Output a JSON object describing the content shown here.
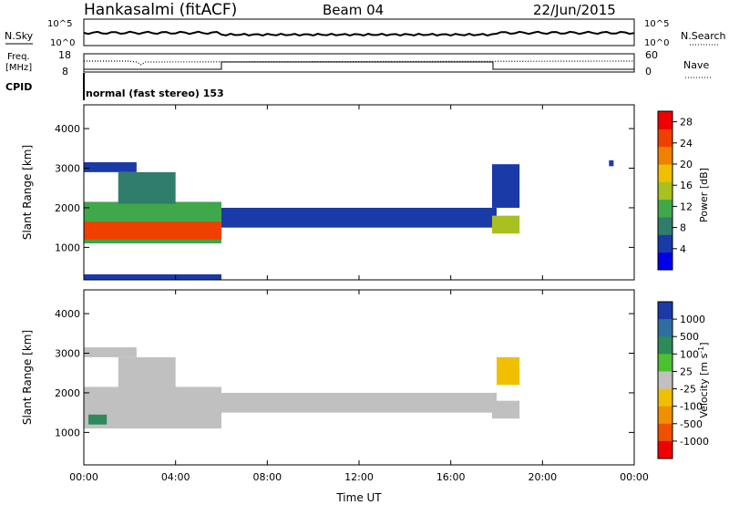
{
  "header": {
    "station": "Hankasalmi (fitACF)",
    "beam": "Beam 04",
    "date": "22/Jun/2015"
  },
  "top_panels": {
    "nsky_label": "N.Sky",
    "nsky_ticks": [
      "10^5",
      "10^0"
    ],
    "nsearch_label": "N.Search",
    "nsearch_ticks": [
      "10^5",
      "10^0"
    ],
    "freq_label_1": "Freq.",
    "freq_label_2": "[MHz]",
    "freq_ticks": [
      "18",
      "8"
    ],
    "nave_label": "Nave",
    "nave_ticks": [
      "60",
      "0"
    ],
    "cpid_label": "CPID",
    "cpid_text": "normal (fast stereo) 153"
  },
  "colors": {
    "power_scale": [
      "#0000ee",
      "#1a3aa8",
      "#2f7d6a",
      "#3fa84a",
      "#a8c020",
      "#f0c000",
      "#f08000",
      "#f04000",
      "#ee0000"
    ],
    "velocity_scale": [
      "#1a3aa8",
      "#2f6fa0",
      "#2f8a5a",
      "#4cc030",
      "#c0c0c0",
      "#f0c000",
      "#f09000",
      "#f05000",
      "#ee0000"
    ]
  },
  "chart_data": [
    {
      "type": "heatmap",
      "title": "Power",
      "xlabel": "Time UT",
      "ylabel": "Slant Range [km]",
      "xlim": [
        "00:00",
        "24:00"
      ],
      "ylim": [
        180,
        4600
      ],
      "x_ticks": [
        "00:00",
        "04:00",
        "08:00",
        "12:00",
        "16:00",
        "20:00",
        "00:00"
      ],
      "y_ticks": [
        "1000",
        "2000",
        "3000",
        "4000"
      ],
      "colorbar": {
        "label": "Power [dB]",
        "ticks": [
          "4",
          "8",
          "12",
          "16",
          "20",
          "24",
          "28"
        ],
        "range": [
          0,
          30
        ]
      },
      "regions": [
        {
          "t0": 0.0,
          "t1": 2.3,
          "r0": 2900,
          "r1": 3150,
          "value": 6
        },
        {
          "t0": 0.0,
          "t1": 6.0,
          "r0": 180,
          "r1": 320,
          "value": 6
        },
        {
          "t0": 0.0,
          "t1": 6.0,
          "r0": 1100,
          "r1": 2150,
          "value": 12
        },
        {
          "t0": 0.0,
          "t1": 6.0,
          "r0": 1200,
          "r1": 1650,
          "value": 24
        },
        {
          "t0": 1.5,
          "t1": 4.0,
          "r0": 2100,
          "r1": 2900,
          "value": 8
        },
        {
          "t0": 6.0,
          "t1": 18.0,
          "r0": 1500,
          "r1": 2000,
          "value": 6
        },
        {
          "t0": 17.8,
          "t1": 19.0,
          "r0": 1350,
          "r1": 1800,
          "value": 16
        },
        {
          "t0": 17.8,
          "t1": 19.0,
          "r0": 2000,
          "r1": 3100,
          "value": 6
        },
        {
          "t0": 22.9,
          "t1": 23.1,
          "r0": 3050,
          "r1": 3200,
          "value": 4
        }
      ]
    },
    {
      "type": "heatmap",
      "title": "Velocity",
      "xlabel": "Time UT",
      "ylabel": "Slant Range [km]",
      "xlim": [
        "00:00",
        "24:00"
      ],
      "ylim": [
        180,
        4600
      ],
      "x_ticks": [
        "00:00",
        "04:00",
        "08:00",
        "12:00",
        "16:00",
        "20:00",
        "00:00"
      ],
      "y_ticks": [
        "1000",
        "2000",
        "3000",
        "4000"
      ],
      "colorbar": {
        "label": "Velocity [m s^-1]",
        "ticks": [
          "1000",
          "500",
          "100",
          "25",
          "-25",
          "-100",
          "-500",
          "-1000"
        ]
      },
      "regions": [
        {
          "t0": 0.0,
          "t1": 6.0,
          "r0": 1100,
          "r1": 2150,
          "value": 0
        },
        {
          "t0": 0.2,
          "t1": 1.0,
          "r0": 1200,
          "r1": 1450,
          "value": 200
        },
        {
          "t0": 0.0,
          "t1": 2.3,
          "r0": 2900,
          "r1": 3150,
          "value": 0
        },
        {
          "t0": 1.5,
          "t1": 4.0,
          "r0": 2100,
          "r1": 2900,
          "value": 0
        },
        {
          "t0": 6.0,
          "t1": 18.0,
          "r0": 1500,
          "r1": 2000,
          "value": 0
        },
        {
          "t0": 17.8,
          "t1": 19.0,
          "r0": 1350,
          "r1": 1800,
          "value": 0
        },
        {
          "t0": 18.0,
          "t1": 19.0,
          "r0": 2200,
          "r1": 2900,
          "value": -100
        }
      ]
    }
  ]
}
